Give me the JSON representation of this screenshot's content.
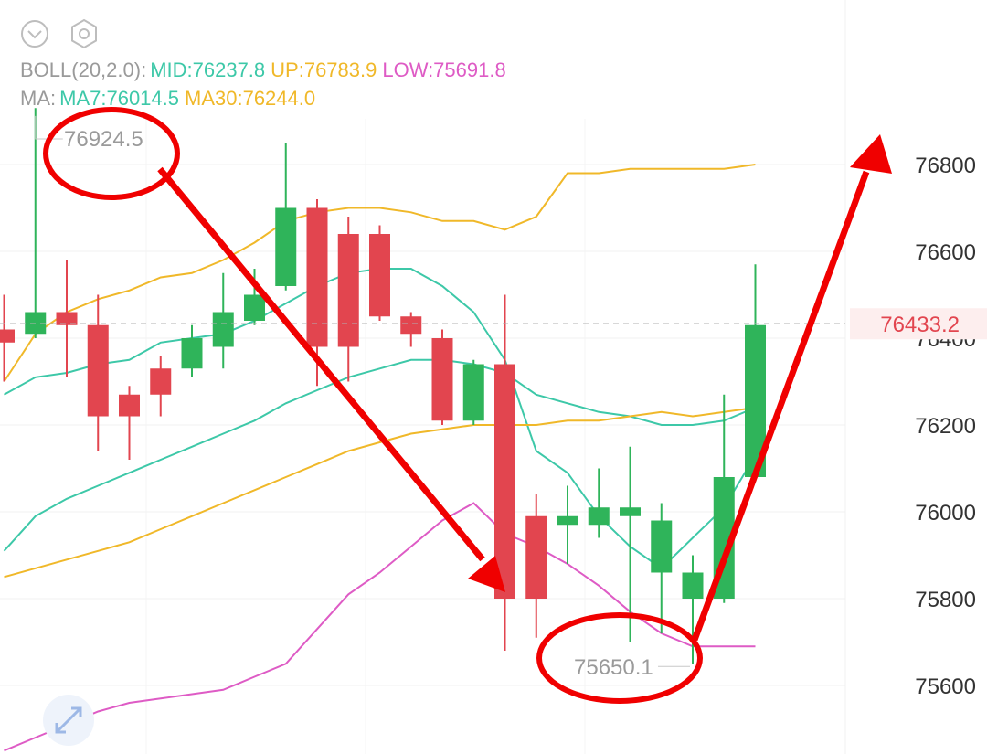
{
  "colors": {
    "up": "#2fb45a",
    "down": "#e2454f",
    "boll_mid": "#3dc8a8",
    "boll_up": "#f0b829",
    "boll_low": "#de5bc5",
    "ma7": "#3dc8a8",
    "ma30": "#f0b829",
    "label_gray": "#9a9a9a",
    "price_red": "#e2454f",
    "annotation_red": "#f00000"
  },
  "toolbar": {
    "collapse_icon": "chevron-down-icon",
    "settings_icon": "hexagon-settings-icon"
  },
  "indicators": {
    "boll": {
      "name": "BOLL(20,2.0):",
      "mid": "MID:76237.8",
      "up": "UP:76783.9",
      "low": "LOW:75691.8"
    },
    "ma": {
      "name": "MA:",
      "ma7": "MA7:76014.5",
      "ma30": "MA30:76244.0"
    }
  },
  "chart_data": {
    "type": "candlestick",
    "y_axis": {
      "ticks": [
        "76800",
        "76600",
        "76400",
        "76200",
        "76000",
        "75800",
        "75600"
      ],
      "ylim": [
        75450,
        77300
      ],
      "grid": true
    },
    "current_price": {
      "value": 76433.2,
      "label": "76433.2"
    },
    "high_marker": {
      "value": 76924.5,
      "label": "76924.5"
    },
    "low_marker": {
      "value": 75650.1,
      "label": "75650.1"
    },
    "candles": [
      {
        "o": 76420,
        "c": 76390,
        "h": 76500,
        "l": 76300
      },
      {
        "o": 76410,
        "c": 76460,
        "h": 76930,
        "l": 76400
      },
      {
        "o": 76460,
        "c": 76430,
        "h": 76580,
        "l": 76310
      },
      {
        "o": 76430,
        "c": 76220,
        "h": 76500,
        "l": 76140
      },
      {
        "o": 76270,
        "c": 76220,
        "h": 76290,
        "l": 76120
      },
      {
        "o": 76330,
        "c": 76270,
        "h": 76360,
        "l": 76220
      },
      {
        "o": 76330,
        "c": 76400,
        "h": 76430,
        "l": 76310
      },
      {
        "o": 76380,
        "c": 76460,
        "h": 76550,
        "l": 76330
      },
      {
        "o": 76440,
        "c": 76500,
        "h": 76560,
        "l": 76430
      },
      {
        "o": 76520,
        "c": 76700,
        "h": 76850,
        "l": 76510
      },
      {
        "o": 76700,
        "c": 76380,
        "h": 76720,
        "l": 76290
      },
      {
        "o": 76640,
        "c": 76380,
        "h": 76680,
        "l": 76300
      },
      {
        "o": 76640,
        "c": 76450,
        "h": 76660,
        "l": 76440
      },
      {
        "o": 76450,
        "c": 76410,
        "h": 76460,
        "l": 76380
      },
      {
        "o": 76400,
        "c": 76210,
        "h": 76420,
        "l": 76200
      },
      {
        "o": 76210,
        "c": 76340,
        "h": 76350,
        "l": 76200
      },
      {
        "o": 76340,
        "c": 75800,
        "h": 76500,
        "l": 75680
      },
      {
        "o": 75990,
        "c": 75800,
        "h": 76040,
        "l": 75710
      },
      {
        "o": 75970,
        "c": 75990,
        "h": 76060,
        "l": 75880
      },
      {
        "o": 75970,
        "c": 76010,
        "h": 76100,
        "l": 75940
      },
      {
        "o": 75990,
        "c": 76010,
        "h": 76150,
        "l": 75700
      },
      {
        "o": 75860,
        "c": 75980,
        "h": 76020,
        "l": 75720
      },
      {
        "o": 75800,
        "c": 75860,
        "h": 75900,
        "l": 75650
      },
      {
        "o": 75800,
        "c": 76080,
        "h": 76270,
        "l": 75790
      },
      {
        "o": 76080,
        "c": 76430,
        "h": 76570,
        "l": 76070
      }
    ],
    "series": [
      {
        "key": "boll_up",
        "values": [
          76300,
          76410,
          76460,
          76490,
          76510,
          76540,
          76550,
          76580,
          76620,
          76670,
          76690,
          76700,
          76700,
          76690,
          76670,
          76670,
          76650,
          76680,
          76780,
          76780,
          76790,
          76790,
          76790,
          76790,
          76800
        ]
      },
      {
        "key": "ma7",
        "values": [
          76270,
          76310,
          76320,
          76340,
          76350,
          76390,
          76400,
          76410,
          76440,
          76480,
          76520,
          76550,
          76560,
          76560,
          76520,
          76460,
          76350,
          76140,
          76090,
          75990,
          75920,
          75870,
          75940,
          76010,
          76130
        ]
      },
      {
        "key": "boll_mid",
        "values": [
          75910,
          75990,
          76030,
          76060,
          76090,
          76120,
          76150,
          76180,
          76210,
          76250,
          76280,
          76310,
          76330,
          76350,
          76350,
          76340,
          76320,
          76270,
          76250,
          76230,
          76220,
          76200,
          76200,
          76210,
          76240
        ]
      },
      {
        "key": "ma30",
        "values": [
          75850,
          75870,
          75890,
          75910,
          75930,
          75960,
          75990,
          76020,
          76050,
          76080,
          76110,
          76140,
          76160,
          76180,
          76190,
          76200,
          76200,
          76200,
          76210,
          76210,
          76220,
          76230,
          76220,
          76230,
          76240
        ]
      },
      {
        "key": "boll_low",
        "values": [
          75450,
          75480,
          75510,
          75540,
          75560,
          75570,
          75580,
          75590,
          75620,
          75650,
          75730,
          75810,
          75860,
          75920,
          75980,
          76020,
          75950,
          75920,
          75880,
          75830,
          75770,
          75720,
          75690,
          75690,
          75690
        ]
      }
    ]
  }
}
